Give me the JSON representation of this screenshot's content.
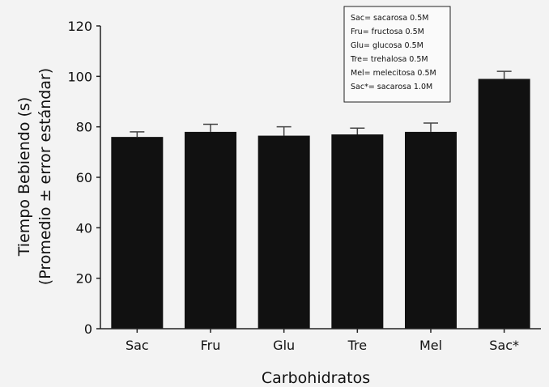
{
  "chart_data": {
    "type": "bar",
    "categories": [
      "Sac",
      "Fru",
      "Glu",
      "Tre",
      "Mel",
      "Sac*"
    ],
    "values": [
      76,
      78,
      76.5,
      77,
      78,
      99
    ],
    "errors": [
      2,
      3,
      3.5,
      2.5,
      3.5,
      3
    ],
    "title": "",
    "xlabel": "Carbohidratos",
    "ylabel": [
      "Tiempo Bebiendo (s)",
      "(Promedio ± error estándar)"
    ],
    "ylim": [
      0,
      120
    ],
    "yticks": [
      0,
      20,
      40,
      60,
      80,
      100,
      120
    ],
    "legend": {
      "placement": "top-right",
      "entries": [
        "Sac= sacarosa 0.5M",
        "Fru= fructosa 0.5M",
        "Glu= glucosa 0.5M",
        "Tre= trehalosa 0.5M",
        "Mel= melecitosa 0.5M",
        "Sac*= sacarosa 1.0M"
      ]
    },
    "colors": {
      "bar": "#111111",
      "axis": "#222222",
      "error_bar": "#444444"
    }
  }
}
